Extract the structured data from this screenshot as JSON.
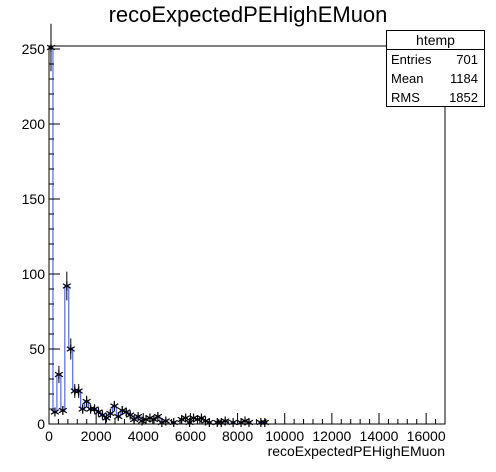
{
  "chart_data": {
    "type": "histogram",
    "title": "recoExpectedPEHighEMuon",
    "xlabel": "recoExpectedPEHighEMuon",
    "ylabel": "",
    "xlim": [
      0,
      16800
    ],
    "ylim": [
      0,
      252
    ],
    "x_ticks": [
      0,
      2000,
      4000,
      6000,
      8000,
      10000,
      12000,
      14000,
      16000
    ],
    "x_tick_labels": [
      "0",
      "2000",
      "4000",
      "6000",
      "8000",
      "10000",
      "12000",
      "14000",
      "16000"
    ],
    "y_ticks": [
      0,
      50,
      100,
      150,
      200,
      250
    ],
    "y_tick_labels": [
      "0",
      "50",
      "100",
      "150",
      "200",
      "250"
    ],
    "bin_width": 168,
    "bin_lows": [
      0,
      168,
      336,
      504,
      672,
      840,
      1008,
      1176,
      1344,
      1512,
      1680,
      1848,
      2016,
      2184,
      2352,
      2520,
      2688,
      2856,
      3024,
      3192,
      3360,
      3528,
      3696,
      3864,
      4032,
      4200,
      4368,
      4536,
      4704,
      4872,
      5040,
      5208,
      5376,
      5544,
      5712,
      5880,
      6048,
      6216,
      6384,
      6552,
      6720,
      6888,
      7056,
      7224,
      7392,
      7560,
      7728,
      7896,
      8064,
      8232,
      8400,
      8568,
      8736,
      8904,
      9072,
      9240
    ],
    "bin_values": [
      251,
      8,
      33,
      9,
      92,
      50,
      22,
      22,
      10,
      15,
      10,
      10,
      8,
      6,
      4,
      7,
      12,
      5,
      9,
      8,
      6,
      3,
      5,
      2,
      3,
      4,
      3,
      5,
      1,
      2,
      0,
      1,
      0,
      3,
      4,
      1,
      4,
      3,
      4,
      2,
      1,
      0,
      1,
      1,
      2,
      0,
      1,
      0,
      1,
      2,
      1,
      0,
      0,
      1,
      1,
      0
    ],
    "marker": "asterisk",
    "stats": {
      "title": "htemp",
      "rows": [
        {
          "label": "Entries",
          "value": "701"
        },
        {
          "label": "Mean",
          "value": "1184"
        },
        {
          "label": "RMS",
          "value": "1852"
        }
      ]
    },
    "colors": {
      "axis": "#000000",
      "outline": "#3b4bd9",
      "marker": "#000000"
    }
  }
}
